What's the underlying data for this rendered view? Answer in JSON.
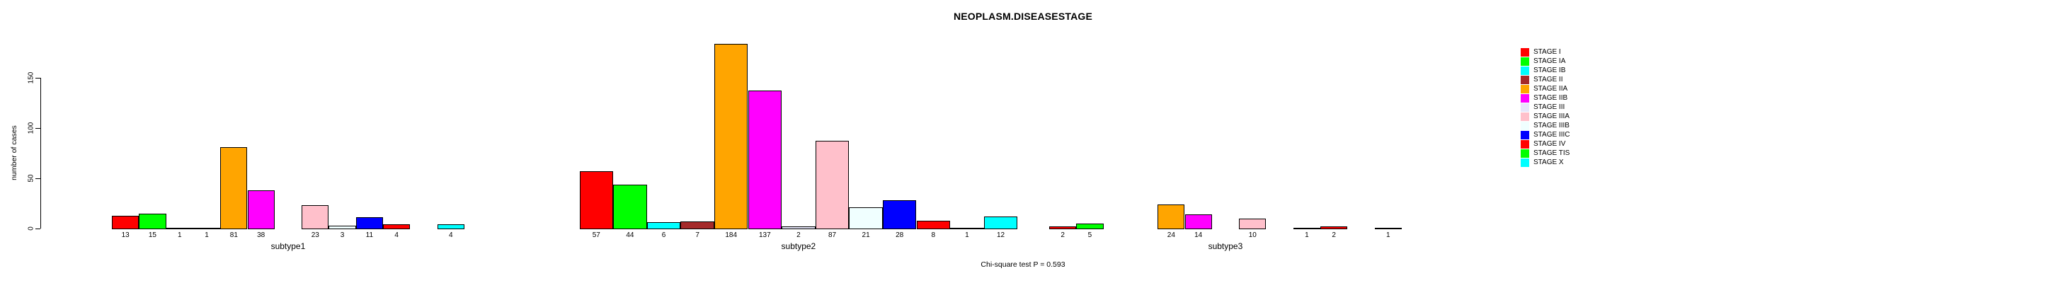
{
  "chart_data": {
    "type": "bar",
    "title": "NEOPLASM.DISEASESTAGE",
    "ylabel": "number of cases",
    "xlabel": "",
    "caption": "Chi-square test P = 0.593",
    "ylim": [
      0,
      150
    ],
    "y_ticks": [
      "0",
      "50",
      "100",
      "150"
    ],
    "grid": false,
    "legend_position": "right",
    "categories": [
      "subtype1",
      "subtype2",
      "subtype3"
    ],
    "stages": [
      "STAGE I",
      "STAGE IA",
      "STAGE IB",
      "STAGE II",
      "STAGE IIA",
      "STAGE IIB",
      "STAGE III",
      "STAGE IIIA",
      "STAGE IIIB",
      "STAGE IIIC",
      "STAGE IV",
      "STAGE TIS",
      "STAGE X"
    ],
    "colors": [
      "#FF0000",
      "#00FF00",
      "#00FFFF",
      "#A52A2A",
      "#FFA500",
      "#FF00FF",
      "#E6E6FA",
      "#FFC0CB",
      "#F0FFFF",
      "#0000FF",
      "#FF0000",
      "#00FF00",
      "#00FFFF"
    ],
    "series": [
      {
        "name": "subtype1",
        "values": [
          13,
          15,
          1,
          1,
          81,
          38,
          0,
          23,
          3,
          11,
          4,
          0,
          4
        ]
      },
      {
        "name": "subtype2",
        "values": [
          57,
          44,
          6,
          7,
          184,
          137,
          2,
          87,
          21,
          28,
          8,
          1,
          12
        ]
      },
      {
        "name": "subtype3",
        "values": [
          2,
          5,
          0,
          0,
          24,
          14,
          0,
          10,
          0,
          1,
          2,
          0,
          1
        ]
      }
    ]
  }
}
